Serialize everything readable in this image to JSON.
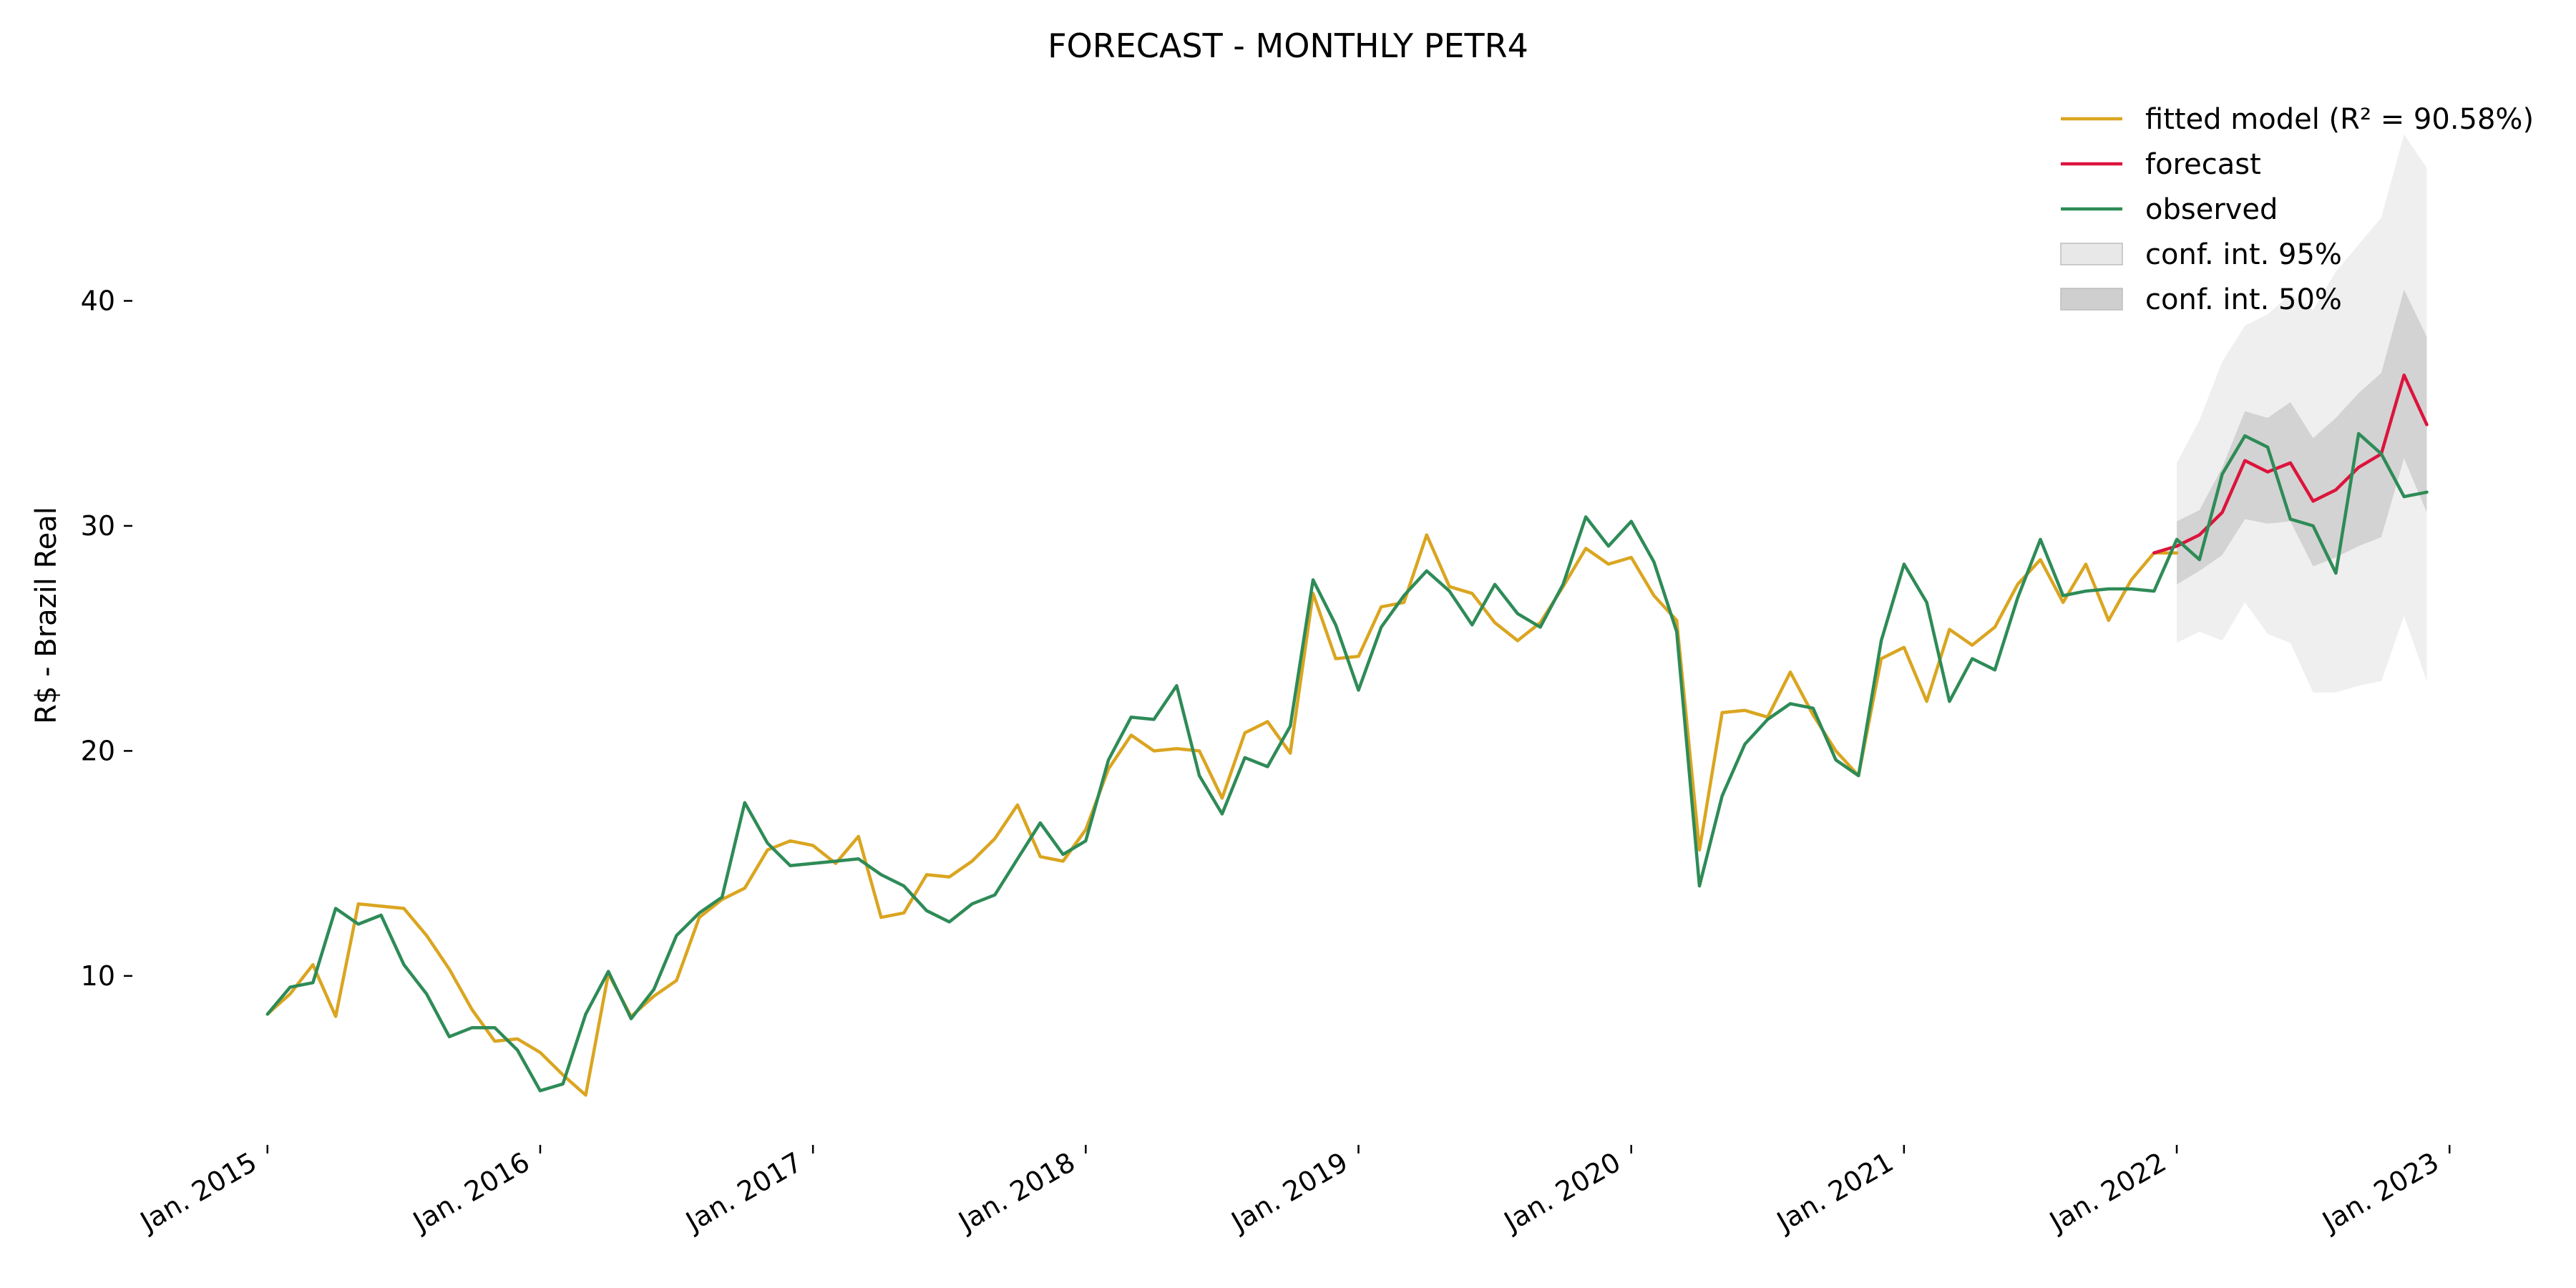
{
  "chart_data": {
    "type": "line",
    "title": "FORECAST - MONTHLY PETR4",
    "xlabel": "",
    "ylabel": "R$ - Brazil Real",
    "x_tick_labels": [
      "Jan. 2015",
      "Jan. 2016",
      "Jan. 2017",
      "Jan. 2018",
      "Jan. 2019",
      "Jan. 2020",
      "Jan. 2021",
      "Jan. 2022",
      "Jan. 2023"
    ],
    "y_ticks": [
      10,
      20,
      30,
      40
    ],
    "ylim": [
      3,
      50
    ],
    "xlim": [
      "2014-12",
      "2023-02"
    ],
    "grid": false,
    "legend_position": "top-right",
    "colors": {
      "fitted": "#DAA520",
      "forecast": "#DC143C",
      "observed": "#2E8B57",
      "ci95": "#d9d9d9",
      "ci50": "#a6a6a6"
    },
    "legend": [
      {
        "label": "fitted model (R² = 90.58%)",
        "kind": "line",
        "color": "#DAA520"
      },
      {
        "label": "forecast",
        "kind": "line",
        "color": "#DC143C"
      },
      {
        "label": "observed",
        "kind": "line",
        "color": "#2E8B57"
      },
      {
        "label": "conf. int. 95%",
        "kind": "patch",
        "color": "#e8e8e8"
      },
      {
        "label": "conf. int. 50%",
        "kind": "patch",
        "color": "#cfcfcf"
      }
    ],
    "start_month": "2015-01",
    "series": [
      {
        "name": "observed",
        "start": "2015-01",
        "values": [
          8.3,
          9.5,
          9.7,
          13.0,
          12.3,
          12.7,
          10.5,
          9.2,
          7.3,
          7.7,
          7.7,
          6.7,
          4.9,
          5.2,
          8.3,
          10.2,
          8.1,
          9.4,
          11.8,
          12.8,
          13.5,
          17.7,
          15.9,
          14.9,
          15.0,
          15.1,
          15.2,
          14.5,
          14.0,
          12.9,
          12.4,
          13.2,
          13.6,
          15.2,
          16.8,
          15.4,
          16.0,
          19.6,
          21.5,
          21.4,
          22.9,
          18.9,
          17.2,
          19.7,
          19.3,
          21.1,
          27.6,
          25.6,
          22.7,
          25.5,
          26.9,
          28.0,
          27.1,
          25.6,
          27.4,
          26.1,
          25.5,
          27.4,
          30.4,
          29.1,
          30.2,
          28.4,
          25.3,
          14.0,
          18.0,
          20.3,
          21.4,
          22.1,
          21.9,
          19.6,
          18.9,
          24.9,
          28.3,
          26.6,
          22.2,
          24.1,
          23.6,
          26.8,
          29.4,
          26.9,
          27.1,
          27.2,
          27.2,
          27.1,
          29.4,
          28.5,
          32.3,
          34.0,
          33.5,
          30.3,
          30.0,
          27.9,
          34.1,
          33.2,
          31.3,
          31.5
        ]
      },
      {
        "name": "fitted model (R² = 90.58%)",
        "start": "2015-01",
        "values": [
          8.3,
          9.2,
          10.5,
          8.2,
          13.2,
          13.1,
          13.0,
          11.8,
          10.3,
          8.5,
          7.1,
          7.2,
          6.6,
          5.6,
          4.7,
          10.1,
          8.2,
          9.1,
          9.8,
          12.6,
          13.4,
          13.9,
          15.6,
          16.0,
          15.8,
          15.0,
          16.2,
          12.6,
          12.8,
          14.5,
          14.4,
          15.1,
          16.1,
          17.6,
          15.3,
          15.1,
          16.5,
          19.2,
          20.7,
          20.0,
          20.1,
          20.0,
          17.9,
          20.8,
          21.3,
          19.9,
          27.0,
          24.1,
          24.2,
          26.4,
          26.6,
          29.6,
          27.3,
          27.0,
          25.7,
          24.9,
          25.7,
          27.3,
          29.0,
          28.3,
          28.6,
          26.9,
          25.8,
          15.6,
          21.7,
          21.8,
          21.5,
          23.5,
          21.6,
          20.0,
          18.9,
          24.1,
          24.6,
          22.2,
          25.4,
          24.7,
          25.5,
          27.4,
          28.5,
          26.6,
          28.3,
          25.8,
          27.6,
          28.8,
          28.8
        ]
      },
      {
        "name": "forecast",
        "start": "2021-12",
        "values": [
          28.8,
          29.1,
          29.6,
          30.6,
          32.9,
          32.4,
          32.8,
          31.1,
          31.6,
          32.6,
          33.2,
          36.7,
          34.5
        ]
      }
    ],
    "conf_int_50": {
      "start": "2022-01",
      "lower": [
        27.4,
        28.0,
        28.7,
        30.3,
        30.1,
        30.2,
        28.2,
        28.6,
        29.1,
        29.5,
        33.0,
        30.6
      ],
      "upper": [
        30.2,
        30.7,
        32.6,
        35.1,
        34.8,
        35.5,
        33.9,
        34.8,
        35.9,
        36.8,
        40.5,
        38.4
      ]
    },
    "conf_int_95": {
      "start": "2022-01",
      "lower": [
        24.8,
        25.3,
        24.9,
        26.6,
        25.2,
        24.8,
        22.6,
        22.6,
        22.9,
        23.1,
        26.0,
        23.1
      ],
      "upper": [
        32.8,
        34.7,
        37.3,
        38.9,
        39.4,
        40.3,
        39.6,
        41.3,
        42.5,
        43.7,
        47.4,
        45.9
      ]
    }
  }
}
